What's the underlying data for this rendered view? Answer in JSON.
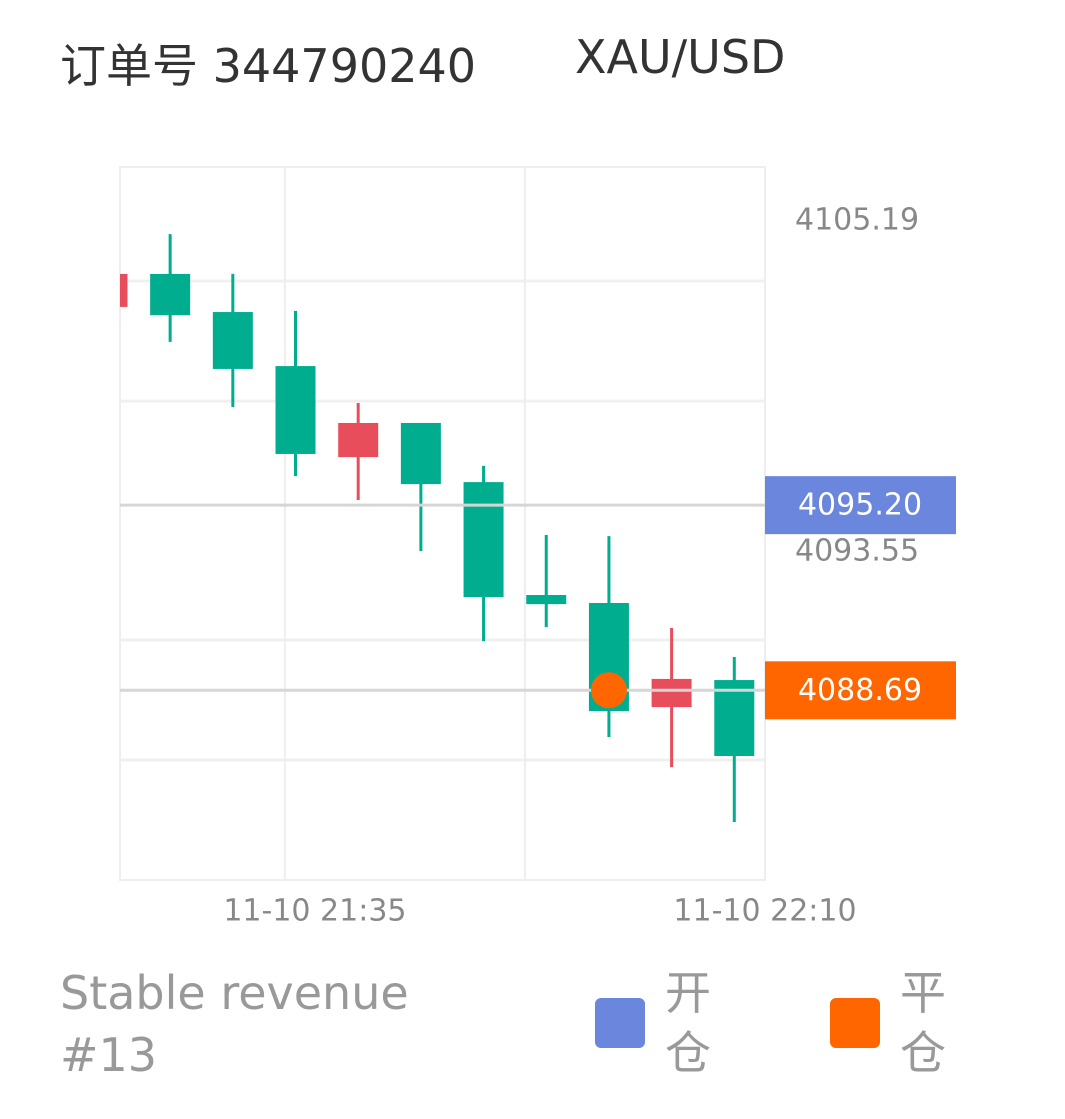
{
  "header": {
    "order": "订单号 344790240",
    "symbol": "XAU/USD"
  },
  "chart_data": {
    "type": "candlestick",
    "open": [
      4102.17,
      4103.33,
      4101.99,
      4100.09,
      4096.89,
      4098.09,
      4096.01,
      4092.04,
      4091.76,
      4088.1,
      4089.05
    ],
    "high": [
      4103.33,
      4104.73,
      4103.33,
      4102.03,
      4098.79,
      4098.09,
      4096.58,
      4094.15,
      4094.11,
      4090.88,
      4089.86
    ],
    "low": [
      4102.17,
      4100.94,
      4098.65,
      4096.22,
      4095.38,
      4093.59,
      4090.42,
      4090.91,
      4087.05,
      4085.99,
      4084.06
    ],
    "close": [
      4103.33,
      4101.88,
      4099.99,
      4097.0,
      4098.09,
      4095.94,
      4091.97,
      4091.72,
      4087.96,
      4089.09,
      4086.38
    ],
    "up_color": "#e84d5b",
    "down_color": "#00ad8e",
    "ylim": [
      4082.02,
      4107.09
    ],
    "yticks": [
      4093.55,
      4105.19
    ],
    "ygrid": [
      4103.08,
      4098.86,
      4090.46,
      4086.24
    ],
    "xlim": [
      0.2,
      10.49
    ],
    "xticks": [
      {
        "value": 3.31,
        "label": "11-10 21:35"
      },
      {
        "value": 10.49,
        "label": "11-10 22:10"
      }
    ],
    "xgrid": [
      2.83,
      6.66
    ],
    "open_price": {
      "value": 4095.2,
      "label": "4095.20",
      "color": "#6b86dd"
    },
    "close_price": {
      "value": 4088.69,
      "label": "4088.69",
      "color": "#ff6600",
      "index": 8
    }
  },
  "footer": {
    "subtitle": "Stable revenue #13",
    "legend": [
      {
        "name": "开仓",
        "color": "#6b86dd"
      },
      {
        "name": "平仓",
        "color": "#ff6600"
      }
    ]
  }
}
